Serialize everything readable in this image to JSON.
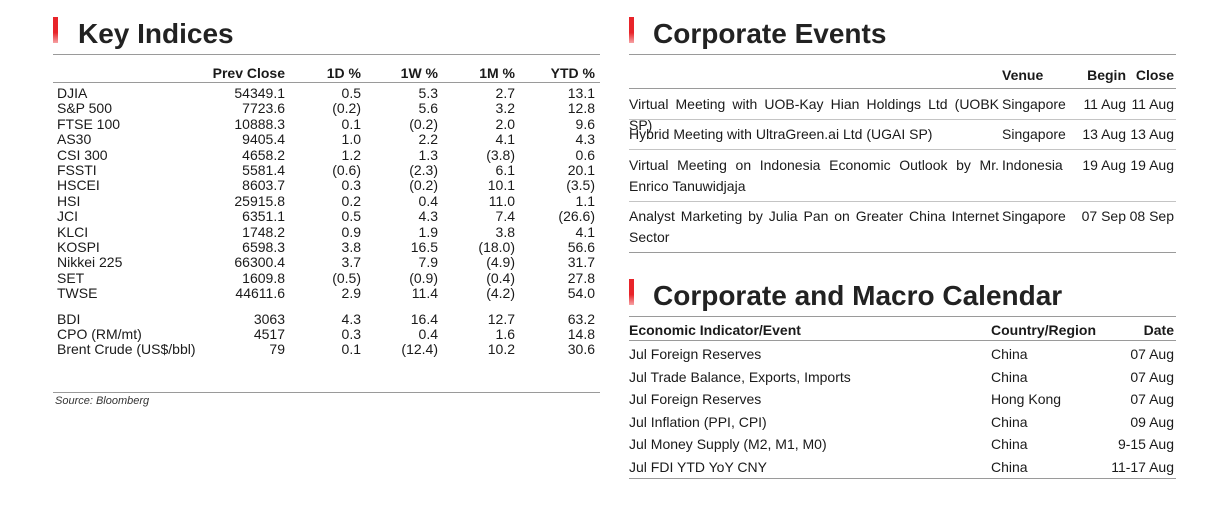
{
  "key_indices": {
    "title": "Key Indices",
    "headers": [
      "Prev Close",
      "1D %",
      "1W %",
      "1M %",
      "YTD %"
    ],
    "rows": [
      [
        "DJIA",
        "54349.1",
        "0.5",
        "5.3",
        "2.7",
        "13.1"
      ],
      [
        "S&P 500",
        "7723.6",
        "(0.2)",
        "5.6",
        "3.2",
        "12.8"
      ],
      [
        "FTSE 100",
        "10888.3",
        "0.1",
        "(0.2)",
        "2.0",
        "9.6"
      ],
      [
        "AS30",
        "9405.4",
        "1.0",
        "2.2",
        "4.1",
        "4.3"
      ],
      [
        "CSI 300",
        "4658.2",
        "1.2",
        "1.3",
        "(3.8)",
        "0.6"
      ],
      [
        "FSSTI",
        "5581.4",
        "(0.6)",
        "(2.3)",
        "6.1",
        "20.1"
      ],
      [
        "HSCEI",
        "8603.7",
        "0.3",
        "(0.2)",
        "10.1",
        "(3.5)"
      ],
      [
        "HSI",
        "25915.8",
        "0.2",
        "0.4",
        "11.0",
        "1.1"
      ],
      [
        "JCI",
        "6351.1",
        "0.5",
        "4.3",
        "7.4",
        "(26.6)"
      ],
      [
        "KLCI",
        "1748.2",
        "0.9",
        "1.9",
        "3.8",
        "4.1"
      ],
      [
        "KOSPI",
        "6598.3",
        "3.8",
        "16.5",
        "(18.0)",
        "56.6"
      ],
      [
        "Nikkei 225",
        "66300.4",
        "3.7",
        "7.9",
        "(4.9)",
        "31.7"
      ],
      [
        "SET",
        "1609.8",
        "(0.5)",
        "(0.9)",
        "(0.4)",
        "27.8"
      ],
      [
        "TWSE",
        "44611.6",
        "2.9",
        "11.4",
        "(4.2)",
        "54.0"
      ],
      [
        "BDI",
        "3063",
        "4.3",
        "16.4",
        "12.7",
        "63.2"
      ],
      [
        "CPO (RM/mt)",
        "4517",
        "0.3",
        "0.4",
        "1.6",
        "14.8"
      ],
      [
        "Brent Crude (US$/bbl)",
        "79",
        "0.1",
        "(12.4)",
        "10.2",
        "30.6"
      ]
    ],
    "source": "Source: Bloomberg"
  },
  "corporate_events": {
    "title": "Corporate Events",
    "headers": {
      "venue": "Venue",
      "begin": "Begin",
      "close": "Close"
    },
    "rows": [
      {
        "event": "Virtual Meeting with UOB-Kay Hian Holdings Ltd (UOBK SP)",
        "venue": "Singapore",
        "begin": "11 Aug",
        "close": "11 Aug"
      },
      {
        "event": "Hybrid Meeting with UltraGreen.ai Ltd (UGAI SP)",
        "venue": "Singapore",
        "begin": "13 Aug",
        "close": "13 Aug"
      },
      {
        "event": "Virtual Meeting on Indonesia Economic Outlook by Mr. Enrico Tanuwidjaja",
        "venue": "Indonesia",
        "begin": "19 Aug",
        "close": "19 Aug"
      },
      {
        "event": "Analyst Marketing by Julia Pan on Greater China Internet Sector",
        "venue": "Singapore",
        "begin": "07 Sep",
        "close": "08 Sep"
      }
    ]
  },
  "calendar": {
    "title": "Corporate and Macro Calendar",
    "headers": {
      "event": "Economic Indicator/Event",
      "country": "Country/Region",
      "date": "Date"
    },
    "rows": [
      {
        "event": "Jul Foreign Reserves",
        "country": "China",
        "date": "07 Aug"
      },
      {
        "event": "Jul Trade Balance, Exports, Imports",
        "country": "China",
        "date": "07 Aug"
      },
      {
        "event": "Jul Foreign Reserves",
        "country": "Hong Kong",
        "date": "07 Aug"
      },
      {
        "event": "Jul Inflation (PPI, CPI)",
        "country": "China",
        "date": "09 Aug"
      },
      {
        "event": "Jul Money Supply (M2, M1, M0)",
        "country": "China",
        "date": "9-15 Aug"
      },
      {
        "event": "Jul FDI YTD YoY CNY",
        "country": "China",
        "date": "11-17 Aug"
      }
    ]
  },
  "colors": {
    "accent": "#e8242a",
    "rule": "#9a9a9a",
    "text": "#1a1a1a"
  }
}
